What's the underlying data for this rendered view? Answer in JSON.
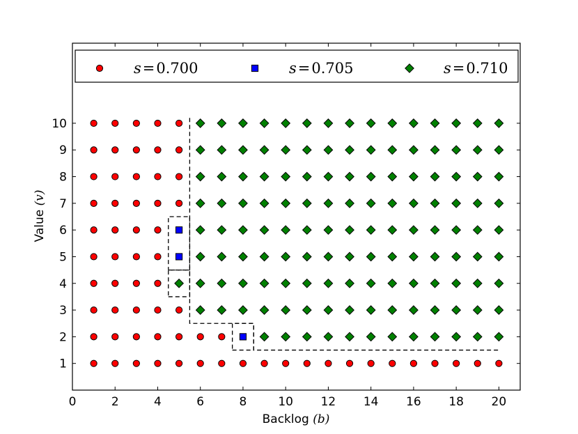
{
  "chart_data": {
    "type": "scatter",
    "title": "",
    "xlabel": "Backlog (b)",
    "xlabel_main": "Backlog ",
    "xlabel_symbol": "(b)",
    "ylabel": "Value (v)",
    "ylabel_main": "Value ",
    "ylabel_symbol": "(v)",
    "xlim": [
      0,
      21
    ],
    "ylim": [
      0,
      13
    ],
    "xticks": [
      "0",
      "2",
      "4",
      "6",
      "8",
      "10",
      "12",
      "14",
      "16",
      "18",
      "20"
    ],
    "yticks": [
      "1",
      "2",
      "3",
      "4",
      "5",
      "6",
      "7",
      "8",
      "9",
      "10"
    ],
    "grid": false,
    "legend_position": "top",
    "series": [
      {
        "name": "s = 0.700",
        "label_var": "s",
        "label_eq": "=",
        "label_val": "0.700",
        "marker": "circle",
        "color": "#ff0000",
        "points": [
          [
            1,
            1
          ],
          [
            2,
            1
          ],
          [
            3,
            1
          ],
          [
            4,
            1
          ],
          [
            5,
            1
          ],
          [
            6,
            1
          ],
          [
            7,
            1
          ],
          [
            8,
            1
          ],
          [
            9,
            1
          ],
          [
            10,
            1
          ],
          [
            11,
            1
          ],
          [
            12,
            1
          ],
          [
            13,
            1
          ],
          [
            14,
            1
          ],
          [
            15,
            1
          ],
          [
            16,
            1
          ],
          [
            17,
            1
          ],
          [
            18,
            1
          ],
          [
            19,
            1
          ],
          [
            20,
            1
          ],
          [
            1,
            2
          ],
          [
            2,
            2
          ],
          [
            3,
            2
          ],
          [
            4,
            2
          ],
          [
            5,
            2
          ],
          [
            6,
            2
          ],
          [
            7,
            2
          ],
          [
            1,
            3
          ],
          [
            2,
            3
          ],
          [
            3,
            3
          ],
          [
            4,
            3
          ],
          [
            5,
            3
          ],
          [
            1,
            4
          ],
          [
            2,
            4
          ],
          [
            3,
            4
          ],
          [
            4,
            4
          ],
          [
            1,
            5
          ],
          [
            2,
            5
          ],
          [
            3,
            5
          ],
          [
            4,
            5
          ],
          [
            1,
            6
          ],
          [
            2,
            6
          ],
          [
            3,
            6
          ],
          [
            4,
            6
          ],
          [
            1,
            7
          ],
          [
            2,
            7
          ],
          [
            3,
            7
          ],
          [
            4,
            7
          ],
          [
            5,
            7
          ],
          [
            1,
            8
          ],
          [
            2,
            8
          ],
          [
            3,
            8
          ],
          [
            4,
            8
          ],
          [
            5,
            8
          ],
          [
            1,
            9
          ],
          [
            2,
            9
          ],
          [
            3,
            9
          ],
          [
            4,
            9
          ],
          [
            5,
            9
          ],
          [
            1,
            10
          ],
          [
            2,
            10
          ],
          [
            3,
            10
          ],
          [
            4,
            10
          ],
          [
            5,
            10
          ]
        ]
      },
      {
        "name": "s = 0.705",
        "label_var": "s",
        "label_eq": "=",
        "label_val": "0.705",
        "marker": "square",
        "color": "#0000ff",
        "points": [
          [
            8,
            2
          ],
          [
            5,
            5
          ],
          [
            5,
            6
          ]
        ]
      },
      {
        "name": "s = 0.710",
        "label_var": "s",
        "label_eq": "=",
        "label_val": "0.710",
        "marker": "diamond",
        "color": "#008000",
        "points": [
          [
            9,
            2
          ],
          [
            10,
            2
          ],
          [
            11,
            2
          ],
          [
            12,
            2
          ],
          [
            13,
            2
          ],
          [
            14,
            2
          ],
          [
            15,
            2
          ],
          [
            16,
            2
          ],
          [
            17,
            2
          ],
          [
            18,
            2
          ],
          [
            19,
            2
          ],
          [
            20,
            2
          ],
          [
            6,
            3
          ],
          [
            7,
            3
          ],
          [
            8,
            3
          ],
          [
            9,
            3
          ],
          [
            10,
            3
          ],
          [
            11,
            3
          ],
          [
            12,
            3
          ],
          [
            13,
            3
          ],
          [
            14,
            3
          ],
          [
            15,
            3
          ],
          [
            16,
            3
          ],
          [
            17,
            3
          ],
          [
            18,
            3
          ],
          [
            19,
            3
          ],
          [
            20,
            3
          ],
          [
            5,
            4
          ],
          [
            6,
            4
          ],
          [
            7,
            4
          ],
          [
            8,
            4
          ],
          [
            9,
            4
          ],
          [
            10,
            4
          ],
          [
            11,
            4
          ],
          [
            12,
            4
          ],
          [
            13,
            4
          ],
          [
            14,
            4
          ],
          [
            15,
            4
          ],
          [
            16,
            4
          ],
          [
            17,
            4
          ],
          [
            18,
            4
          ],
          [
            19,
            4
          ],
          [
            20,
            4
          ],
          [
            6,
            5
          ],
          [
            7,
            5
          ],
          [
            8,
            5
          ],
          [
            9,
            5
          ],
          [
            10,
            5
          ],
          [
            11,
            5
          ],
          [
            12,
            5
          ],
          [
            13,
            5
          ],
          [
            14,
            5
          ],
          [
            15,
            5
          ],
          [
            16,
            5
          ],
          [
            17,
            5
          ],
          [
            18,
            5
          ],
          [
            19,
            5
          ],
          [
            20,
            5
          ],
          [
            6,
            6
          ],
          [
            7,
            6
          ],
          [
            8,
            6
          ],
          [
            9,
            6
          ],
          [
            10,
            6
          ],
          [
            11,
            6
          ],
          [
            12,
            6
          ],
          [
            13,
            6
          ],
          [
            14,
            6
          ],
          [
            15,
            6
          ],
          [
            16,
            6
          ],
          [
            17,
            6
          ],
          [
            18,
            6
          ],
          [
            19,
            6
          ],
          [
            20,
            6
          ],
          [
            6,
            7
          ],
          [
            7,
            7
          ],
          [
            8,
            7
          ],
          [
            9,
            7
          ],
          [
            10,
            7
          ],
          [
            11,
            7
          ],
          [
            12,
            7
          ],
          [
            13,
            7
          ],
          [
            14,
            7
          ],
          [
            15,
            7
          ],
          [
            16,
            7
          ],
          [
            17,
            7
          ],
          [
            18,
            7
          ],
          [
            19,
            7
          ],
          [
            20,
            7
          ],
          [
            6,
            8
          ],
          [
            7,
            8
          ],
          [
            8,
            8
          ],
          [
            9,
            8
          ],
          [
            10,
            8
          ],
          [
            11,
            8
          ],
          [
            12,
            8
          ],
          [
            13,
            8
          ],
          [
            14,
            8
          ],
          [
            15,
            8
          ],
          [
            16,
            8
          ],
          [
            17,
            8
          ],
          [
            18,
            8
          ],
          [
            19,
            8
          ],
          [
            20,
            8
          ],
          [
            6,
            9
          ],
          [
            7,
            9
          ],
          [
            8,
            9
          ],
          [
            9,
            9
          ],
          [
            10,
            9
          ],
          [
            11,
            9
          ],
          [
            12,
            9
          ],
          [
            13,
            9
          ],
          [
            14,
            9
          ],
          [
            15,
            9
          ],
          [
            16,
            9
          ],
          [
            17,
            9
          ],
          [
            18,
            9
          ],
          [
            19,
            9
          ],
          [
            20,
            9
          ],
          [
            6,
            10
          ],
          [
            7,
            10
          ],
          [
            8,
            10
          ],
          [
            9,
            10
          ],
          [
            10,
            10
          ],
          [
            11,
            10
          ],
          [
            12,
            10
          ],
          [
            13,
            10
          ],
          [
            14,
            10
          ],
          [
            15,
            10
          ],
          [
            16,
            10
          ],
          [
            17,
            10
          ],
          [
            18,
            10
          ],
          [
            19,
            10
          ],
          [
            20,
            10
          ]
        ]
      }
    ],
    "boundaries": [
      {
        "name": "boundary-0700-0710",
        "points": [
          [
            5.5,
            10.2
          ],
          [
            5.5,
            2.5
          ],
          [
            8.5,
            2.5
          ],
          [
            8.5,
            1.5
          ],
          [
            20,
            1.5
          ]
        ]
      },
      {
        "name": "boundary-box-0705-upper",
        "points": [
          [
            4.5,
            4.5
          ],
          [
            5.5,
            4.5
          ],
          [
            5.5,
            6.5
          ],
          [
            4.5,
            6.5
          ],
          [
            4.5,
            4.5
          ]
        ]
      },
      {
        "name": "boundary-box-0710-4",
        "points": [
          [
            4.5,
            3.5
          ],
          [
            5.5,
            3.5
          ],
          [
            5.5,
            4.5
          ],
          [
            4.5,
            4.5
          ],
          [
            4.5,
            3.5
          ]
        ]
      },
      {
        "name": "boundary-box-0705-lower",
        "points": [
          [
            7.5,
            1.5
          ],
          [
            8.5,
            1.5
          ],
          [
            8.5,
            2.5
          ],
          [
            7.5,
            2.5
          ],
          [
            7.5,
            1.5
          ]
        ]
      }
    ]
  }
}
